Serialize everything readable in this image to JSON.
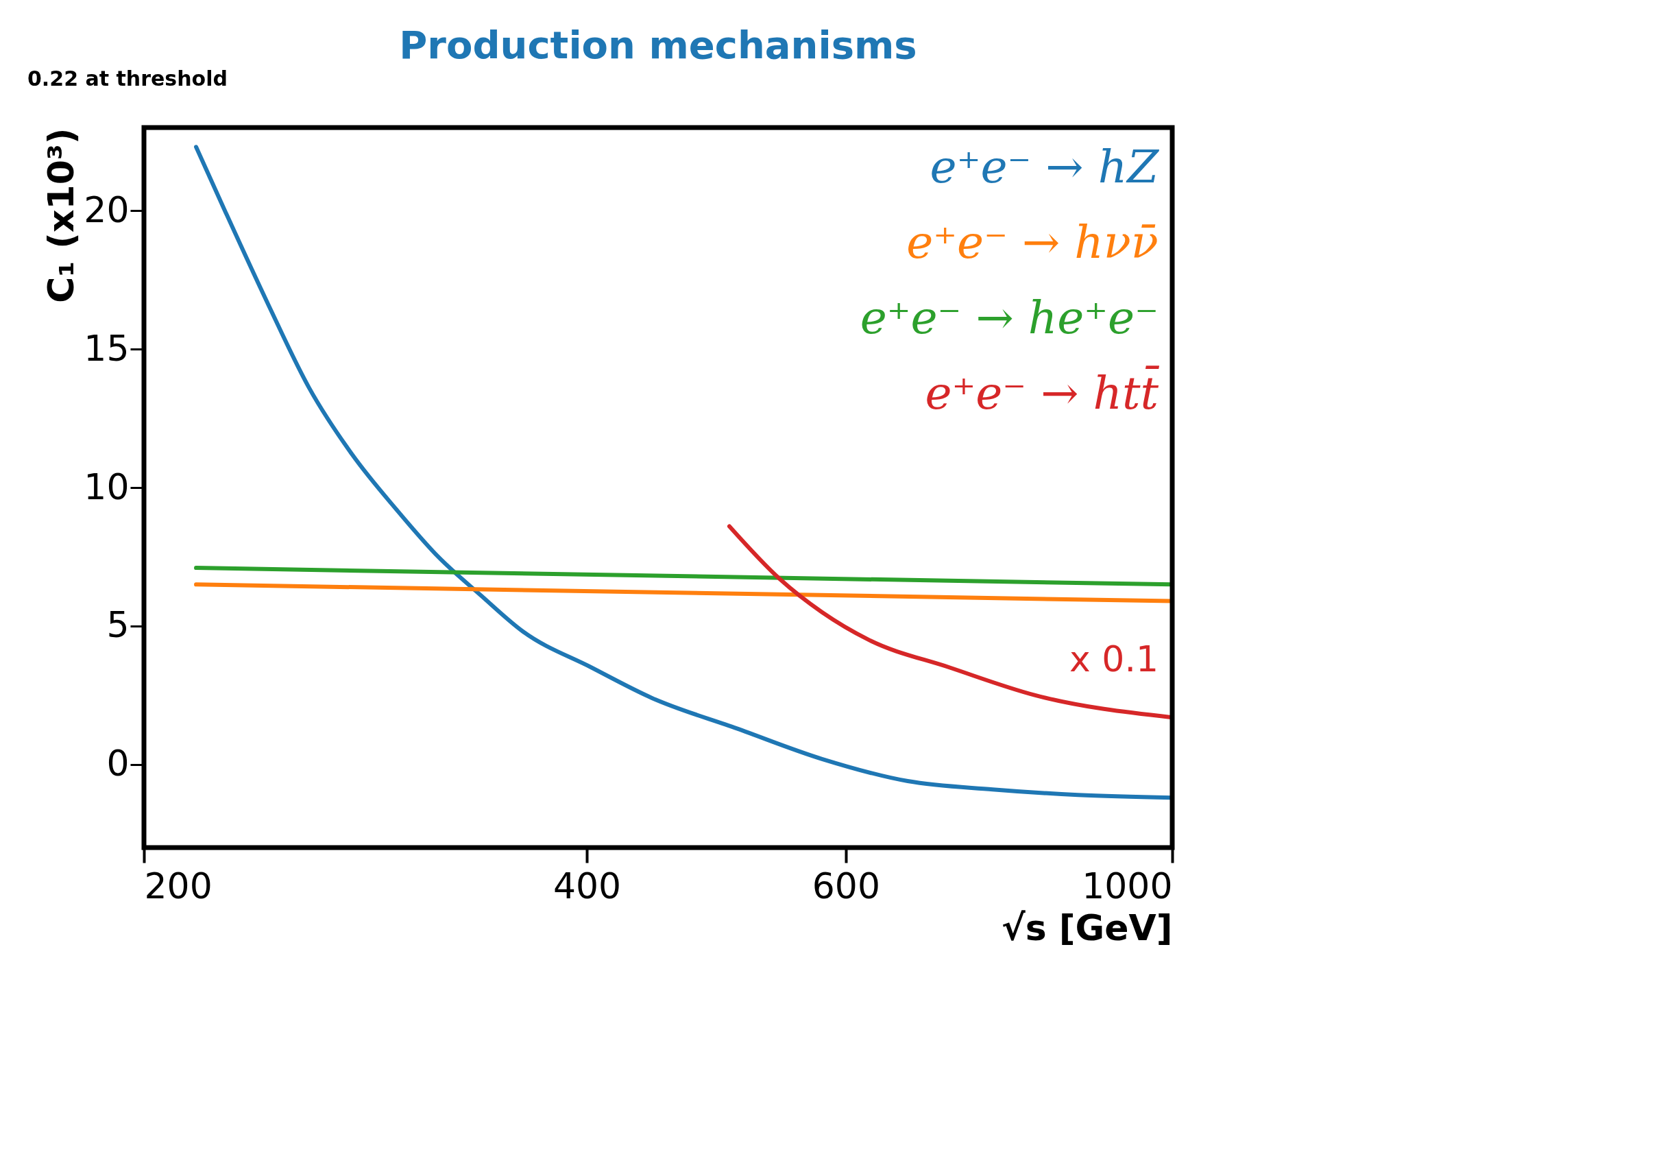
{
  "chart_data": {
    "type": "line",
    "title": "Production mechanisms",
    "xlabel": "√s [GeV]",
    "ylabel": "C₁ (x10³)",
    "log": "x",
    "grid": false,
    "legend": "top right",
    "line_style": "solid",
    "marker": "none",
    "xlim": [
      200,
      1000
    ],
    "ylim": [
      -3,
      23
    ],
    "xticks": [
      200,
      400,
      600,
      1000
    ],
    "yticks": [
      0,
      5,
      10,
      15,
      20
    ],
    "series": [
      {
        "name": "e⁺e⁻ → hZ",
        "color": "#1f77b4",
        "x": [
          217,
          227,
          243,
          259,
          277,
          297,
          317,
          339,
          362,
          403,
          443,
          506,
          578,
          661,
          755,
          863,
          1000
        ],
        "values": [
          22.3,
          20.0,
          16.6,
          13.6,
          11.2,
          9.2,
          7.5,
          6.1,
          4.8,
          3.5,
          2.4,
          1.3,
          0.2,
          -0.6,
          -0.9,
          -1.1,
          -1.2
        ]
      },
      {
        "name": "e⁺e⁻ → hνν̄",
        "color": "#ff7f0e",
        "x": [
          217,
          1000
        ],
        "values": [
          6.5,
          5.9
        ]
      },
      {
        "name": "e⁺e⁻ → he⁺e⁻",
        "color": "#2ca02c",
        "x": [
          217,
          1000
        ],
        "values": [
          7.1,
          6.5
        ]
      },
      {
        "name": "e⁺e⁻ → htt̄",
        "color": "#d62728",
        "x": [
          500,
          541,
          578,
          622,
          706,
          807,
          1000
        ],
        "values": [
          8.6,
          6.7,
          5.5,
          4.5,
          3.5,
          2.5,
          1.7
        ]
      }
    ],
    "annotations": [
      "x 0.1",
      "0.22 at threshold"
    ]
  }
}
